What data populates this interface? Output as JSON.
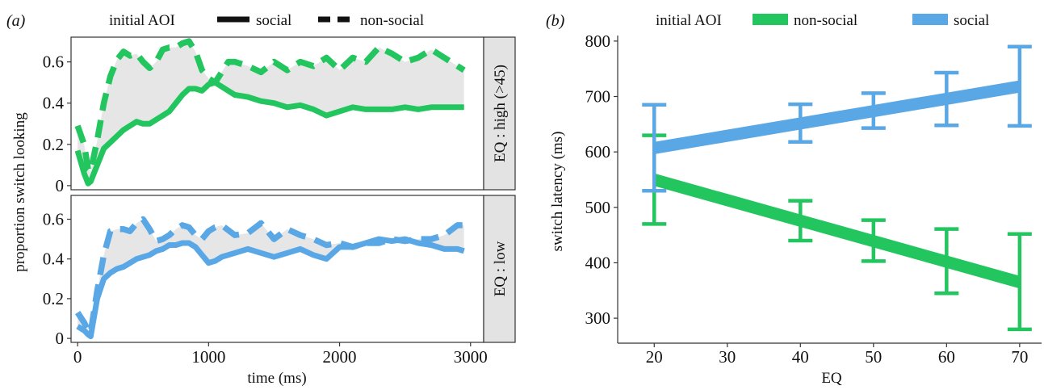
{
  "colors": {
    "green": "#22c55e",
    "blue": "#5aa7e6",
    "ribbon": "#e6e6e6",
    "strip": "#e3e3e3",
    "legend_black": "#111111"
  },
  "chart_data": [
    {
      "panel": "(a)",
      "type": "line",
      "legend_title": "initial AOI",
      "legend_entries": [
        {
          "label": "social",
          "linetype": "solid"
        },
        {
          "label": "non-social",
          "linetype": "dashed"
        }
      ],
      "legend_placement": "top",
      "xlabel": "time (ms)",
      "ylabel": "proportion switch looking",
      "xlim": [
        -50,
        3100
      ],
      "ylim": [
        -0.02,
        0.72
      ],
      "xticks": [
        "0",
        "1000",
        "2000",
        "3000"
      ],
      "yticks": [
        "0",
        "0.2",
        "0.4",
        "0.6"
      ],
      "grid": false,
      "facets": [
        {
          "strip": "EQ : high (>45)",
          "color": "green",
          "series": [
            {
              "name": "social",
              "linetype": "solid",
              "x": [
                0,
                50,
                80,
                100,
                150,
                200,
                250,
                300,
                350,
                400,
                450,
                500,
                550,
                600,
                650,
                700,
                750,
                800,
                850,
                900,
                950,
                1000,
                1050,
                1100,
                1150,
                1200,
                1300,
                1400,
                1500,
                1600,
                1700,
                1800,
                1900,
                2000,
                2100,
                2200,
                2300,
                2400,
                2500,
                2600,
                2700,
                2800,
                2900,
                2950
              ],
              "y": [
                0.17,
                0.06,
                0.01,
                0.02,
                0.1,
                0.18,
                0.21,
                0.24,
                0.27,
                0.29,
                0.31,
                0.3,
                0.3,
                0.32,
                0.34,
                0.36,
                0.4,
                0.44,
                0.47,
                0.47,
                0.46,
                0.49,
                0.5,
                0.48,
                0.46,
                0.44,
                0.43,
                0.41,
                0.4,
                0.38,
                0.39,
                0.37,
                0.34,
                0.36,
                0.38,
                0.37,
                0.37,
                0.37,
                0.38,
                0.37,
                0.38,
                0.38,
                0.38,
                0.38
              ]
            },
            {
              "name": "non-social",
              "linetype": "dashed",
              "x": [
                0,
                50,
                80,
                100,
                150,
                200,
                250,
                300,
                350,
                400,
                450,
                500,
                550,
                600,
                650,
                700,
                750,
                800,
                850,
                900,
                950,
                1000,
                1050,
                1100,
                1150,
                1200,
                1300,
                1400,
                1500,
                1600,
                1700,
                1800,
                1900,
                2000,
                2100,
                2200,
                2300,
                2400,
                2500,
                2600,
                2700,
                2800,
                2900,
                2950
              ],
              "y": [
                0.29,
                0.2,
                0.08,
                0.07,
                0.22,
                0.4,
                0.53,
                0.61,
                0.65,
                0.63,
                0.64,
                0.6,
                0.57,
                0.6,
                0.66,
                0.67,
                0.67,
                0.69,
                0.7,
                0.65,
                0.56,
                0.52,
                0.5,
                0.55,
                0.6,
                0.6,
                0.58,
                0.55,
                0.6,
                0.56,
                0.6,
                0.58,
                0.62,
                0.56,
                0.62,
                0.6,
                0.67,
                0.64,
                0.6,
                0.62,
                0.66,
                0.62,
                0.58,
                0.56
              ]
            }
          ]
        },
        {
          "strip": "EQ : low",
          "color": "blue",
          "series": [
            {
              "name": "social",
              "linetype": "solid",
              "x": [
                0,
                50,
                80,
                100,
                150,
                200,
                250,
                300,
                350,
                400,
                450,
                500,
                550,
                600,
                650,
                700,
                750,
                800,
                850,
                900,
                950,
                1000,
                1050,
                1100,
                1200,
                1300,
                1400,
                1500,
                1600,
                1700,
                1800,
                1900,
                2000,
                2100,
                2200,
                2300,
                2400,
                2500,
                2600,
                2700,
                2800,
                2900,
                2950
              ],
              "y": [
                0.06,
                0.04,
                0.02,
                0.01,
                0.2,
                0.3,
                0.33,
                0.35,
                0.36,
                0.38,
                0.4,
                0.41,
                0.42,
                0.44,
                0.45,
                0.47,
                0.47,
                0.48,
                0.48,
                0.46,
                0.42,
                0.38,
                0.39,
                0.41,
                0.43,
                0.45,
                0.43,
                0.41,
                0.43,
                0.45,
                0.42,
                0.4,
                0.46,
                0.46,
                0.48,
                0.5,
                0.49,
                0.5,
                0.48,
                0.47,
                0.45,
                0.45,
                0.44
              ]
            },
            {
              "name": "non-social",
              "linetype": "dashed",
              "x": [
                0,
                50,
                80,
                100,
                150,
                200,
                250,
                300,
                350,
                400,
                450,
                500,
                550,
                600,
                650,
                700,
                750,
                800,
                850,
                900,
                950,
                1000,
                1050,
                1100,
                1200,
                1300,
                1400,
                1500,
                1600,
                1700,
                1800,
                1900,
                2000,
                2100,
                2200,
                2300,
                2400,
                2500,
                2600,
                2700,
                2800,
                2900,
                2950
              ],
              "y": [
                0.13,
                0.08,
                0.04,
                0.03,
                0.24,
                0.42,
                0.54,
                0.55,
                0.55,
                0.54,
                0.58,
                0.6,
                0.55,
                0.49,
                0.5,
                0.52,
                0.55,
                0.57,
                0.56,
                0.52,
                0.5,
                0.54,
                0.56,
                0.57,
                0.52,
                0.53,
                0.58,
                0.5,
                0.55,
                0.52,
                0.5,
                0.47,
                0.48,
                0.46,
                0.48,
                0.48,
                0.5,
                0.49,
                0.5,
                0.5,
                0.52,
                0.57,
                0.57
              ]
            }
          ]
        }
      ]
    },
    {
      "panel": "(b)",
      "type": "line",
      "legend_title": "initial AOI",
      "legend_placement": "top",
      "xlabel": "EQ",
      "ylabel": "switch latency (ms)",
      "xlim": [
        15,
        73
      ],
      "ylim": [
        255,
        810
      ],
      "xticks": [
        "20",
        "30",
        "40",
        "50",
        "60",
        "70"
      ],
      "yticks": [
        "300",
        "400",
        "500",
        "600",
        "700",
        "800"
      ],
      "grid": false,
      "series": [
        {
          "name": "non-social",
          "color": "green",
          "fit": [
            [
              20,
              550
            ],
            [
              70,
              365
            ]
          ],
          "points": [
            {
              "x": 20,
              "lo": 470,
              "hi": 630
            },
            {
              "x": 40,
              "lo": 440,
              "hi": 512
            },
            {
              "x": 50,
              "lo": 403,
              "hi": 477
            },
            {
              "x": 60,
              "lo": 345,
              "hi": 461
            },
            {
              "x": 70,
              "lo": 280,
              "hi": 452
            }
          ]
        },
        {
          "name": "social",
          "color": "blue",
          "fit": [
            [
              20,
              607
            ],
            [
              70,
              718
            ]
          ],
          "points": [
            {
              "x": 20,
              "lo": 530,
              "hi": 685
            },
            {
              "x": 40,
              "lo": 618,
              "hi": 686
            },
            {
              "x": 50,
              "lo": 643,
              "hi": 706
            },
            {
              "x": 60,
              "lo": 648,
              "hi": 743
            },
            {
              "x": 70,
              "lo": 647,
              "hi": 790
            }
          ]
        }
      ]
    }
  ]
}
